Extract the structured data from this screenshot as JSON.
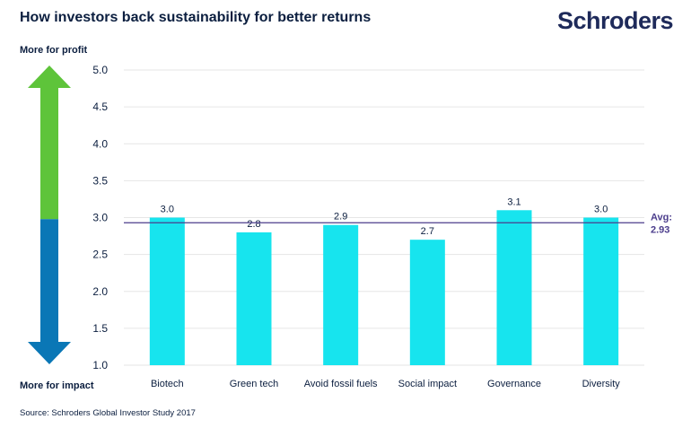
{
  "title": "How investors back sustainability for better returns",
  "brand": "Schroders",
  "top_label": "More for profit",
  "bottom_label": "More for impact",
  "source": "Source: Schroders Global Investor Study 2017",
  "colors": {
    "bar": "#17e4ee",
    "avg_line": "#4b3d8c",
    "arrow_up": "#5ec43a",
    "arrow_down": "#0a77b6",
    "grid": "#e6e6e6",
    "text": "#0b1e3f"
  },
  "chart_data": {
    "type": "bar",
    "categories": [
      "Biotech",
      "Green tech",
      "Avoid fossil fuels",
      "Social impact",
      "Governance",
      "Diversity"
    ],
    "values": [
      3.0,
      2.8,
      2.9,
      2.7,
      3.1,
      3.0
    ],
    "value_labels": [
      "3.0",
      "2.8",
      "2.9",
      "2.7",
      "3.1",
      "3.0"
    ],
    "yticks": [
      "1.0",
      "1.5",
      "2.0",
      "2.5",
      "3.0",
      "3.5",
      "4.0",
      "4.5",
      "5.0"
    ],
    "ylim": [
      1.0,
      5.0
    ],
    "grid": true,
    "average": {
      "value": 2.93,
      "label_prefix": "Avg:",
      "label_value": "2.93"
    }
  }
}
